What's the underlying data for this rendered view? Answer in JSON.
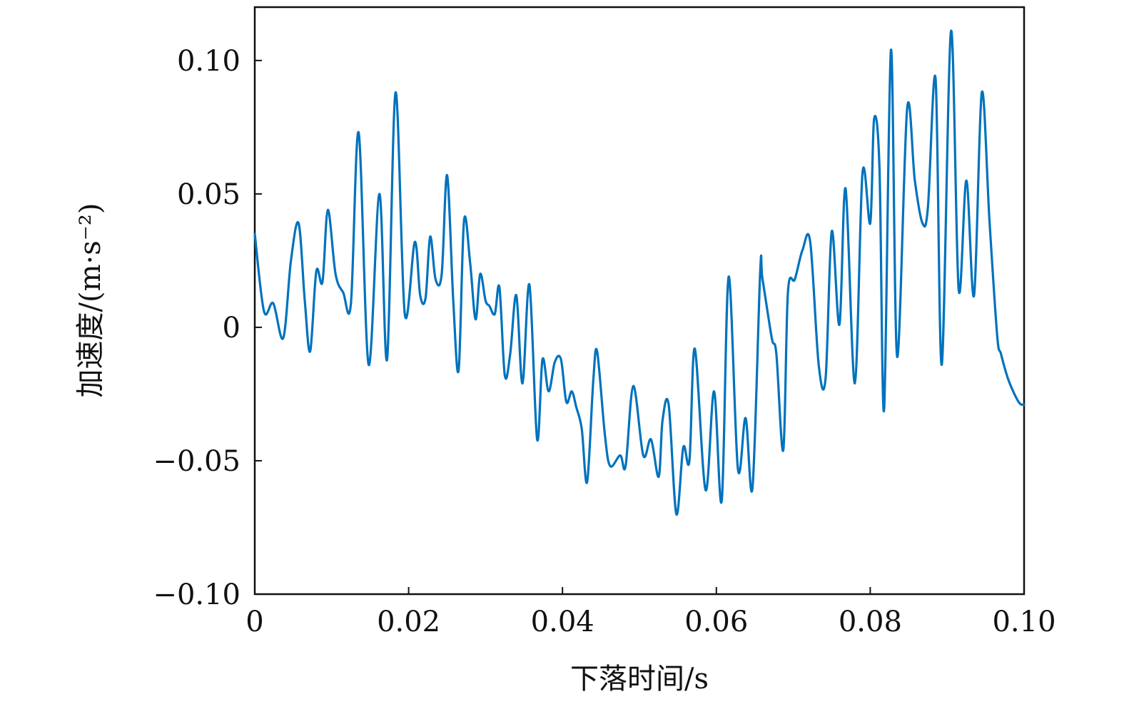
{
  "chart_data": {
    "type": "line",
    "title": "",
    "xlabel": "下落时间/s",
    "ylabel": "加速度/(m·s⁻²)",
    "xlim": [
      0,
      0.1
    ],
    "ylim": [
      -0.1,
      0.12
    ],
    "grid": false,
    "legend": "none",
    "line_color": "#0072bd",
    "x_ticks": [
      {
        "value": 0,
        "label": "0"
      },
      {
        "value": 0.02,
        "label": "0.02"
      },
      {
        "value": 0.04,
        "label": "0.04"
      },
      {
        "value": 0.06,
        "label": "0.06"
      },
      {
        "value": 0.08,
        "label": "0.08"
      },
      {
        "value": 0.1,
        "label": "0.10"
      }
    ],
    "y_ticks": [
      {
        "value": -0.1,
        "label": "−0.10"
      },
      {
        "value": -0.05,
        "label": "−0.05"
      },
      {
        "value": 0,
        "label": "0"
      },
      {
        "value": 0.05,
        "label": "0.05"
      },
      {
        "value": 0.1,
        "label": "0.10"
      }
    ],
    "series": [
      {
        "x": [
          0.0,
          0.0012,
          0.0024,
          0.0037,
          0.0047,
          0.0057,
          0.0065,
          0.0072,
          0.008,
          0.0088,
          0.0095,
          0.0105,
          0.0115,
          0.0125,
          0.0135,
          0.0148,
          0.0162,
          0.0172,
          0.0183,
          0.0195,
          0.0208,
          0.0215,
          0.0222,
          0.0228,
          0.0235,
          0.0243,
          0.025,
          0.0258,
          0.0265,
          0.0272,
          0.028,
          0.0287,
          0.0293,
          0.03,
          0.0305,
          0.0312,
          0.0318,
          0.0325,
          0.0332,
          0.034,
          0.0348,
          0.0357,
          0.0367,
          0.0374,
          0.0382,
          0.039,
          0.0398,
          0.0405,
          0.0412,
          0.0418,
          0.0425,
          0.0432,
          0.044,
          0.0445,
          0.0455,
          0.0462,
          0.0475,
          0.0482,
          0.0492,
          0.0505,
          0.0515,
          0.0525,
          0.053,
          0.0538,
          0.0548,
          0.0557,
          0.0565,
          0.0572,
          0.0586,
          0.0597,
          0.0607,
          0.0616,
          0.0628,
          0.0638,
          0.0647,
          0.0657,
          0.066,
          0.0672,
          0.0678,
          0.0687,
          0.0693,
          0.0702,
          0.0712,
          0.0722,
          0.0733,
          0.0742,
          0.075,
          0.076,
          0.0768,
          0.078,
          0.079,
          0.08,
          0.0805,
          0.0812,
          0.0818,
          0.0827,
          0.0835,
          0.0848,
          0.0858,
          0.0868,
          0.0875,
          0.0885,
          0.0893,
          0.0905,
          0.0915,
          0.0925,
          0.0935,
          0.0945,
          0.0955,
          0.0965,
          0.097,
          0.098,
          0.0993,
          0.1
        ],
        "y": [
          0.035,
          0.006,
          0.009,
          -0.004,
          0.025,
          0.039,
          0.01,
          -0.009,
          0.021,
          0.017,
          0.044,
          0.02,
          0.013,
          0.009,
          0.073,
          -0.014,
          0.05,
          -0.012,
          0.088,
          0.005,
          0.032,
          0.012,
          0.011,
          0.034,
          0.018,
          0.02,
          0.057,
          0.01,
          -0.016,
          0.04,
          0.024,
          0.003,
          0.02,
          0.01,
          0.008,
          0.005,
          0.015,
          -0.018,
          -0.01,
          0.012,
          -0.021,
          0.016,
          -0.042,
          -0.012,
          -0.024,
          -0.013,
          -0.012,
          -0.028,
          -0.024,
          -0.03,
          -0.038,
          -0.058,
          -0.02,
          -0.009,
          -0.04,
          -0.052,
          -0.048,
          -0.052,
          -0.022,
          -0.048,
          -0.042,
          -0.056,
          -0.035,
          -0.029,
          -0.07,
          -0.045,
          -0.05,
          -0.008,
          -0.061,
          -0.024,
          -0.065,
          0.019,
          -0.053,
          -0.034,
          -0.06,
          0.021,
          0.018,
          -0.004,
          -0.01,
          -0.046,
          0.013,
          0.018,
          0.029,
          0.032,
          -0.014,
          -0.019,
          0.036,
          0.001,
          0.052,
          -0.021,
          0.058,
          0.039,
          0.078,
          0.06,
          -0.031,
          0.104,
          -0.011,
          0.082,
          0.055,
          0.039,
          0.045,
          0.093,
          -0.014,
          0.111,
          0.014,
          0.055,
          0.012,
          0.088,
          0.04,
          -0.003,
          -0.01,
          -0.02,
          -0.028,
          -0.029
        ]
      }
    ]
  }
}
